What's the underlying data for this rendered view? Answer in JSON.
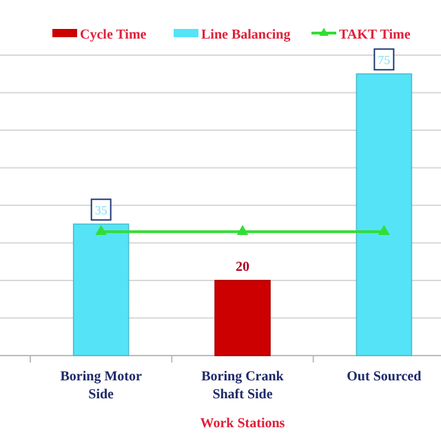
{
  "chart_data": {
    "type": "bar",
    "xlabel": "Work Stations",
    "categories": [
      "Boring Motor Side",
      "Boring Crank Shaft Side",
      "Out Sourced"
    ],
    "series": [
      {
        "name": "Cycle Time",
        "color": "#cc0000",
        "values": [
          null,
          20,
          null
        ],
        "value_labels": [
          null,
          "20",
          null
        ]
      },
      {
        "name": "Line Balancing",
        "color": "#55e3f7",
        "values": [
          35,
          null,
          75
        ],
        "value_labels": [
          "35",
          null,
          "75"
        ]
      },
      {
        "name": "TAKT Time",
        "type": "line",
        "color": "#33dd33",
        "marker": "triangle",
        "values": [
          33,
          33,
          33
        ]
      }
    ],
    "ylim": [
      0,
      80
    ],
    "yticks": [
      {
        "value": 0,
        "label": null
      },
      {
        "value": 10,
        "label": null
      },
      {
        "value": 20,
        "label": null
      },
      {
        "value": 30,
        "label": null
      },
      {
        "value": 40,
        "label": null
      },
      {
        "value": 50,
        "label": null
      },
      {
        "value": 60,
        "label": null
      },
      {
        "value": 70,
        "label": null
      },
      {
        "value": 80,
        "label": null
      }
    ],
    "grid": "y",
    "legend": "top right",
    "tick_labels": "x"
  }
}
